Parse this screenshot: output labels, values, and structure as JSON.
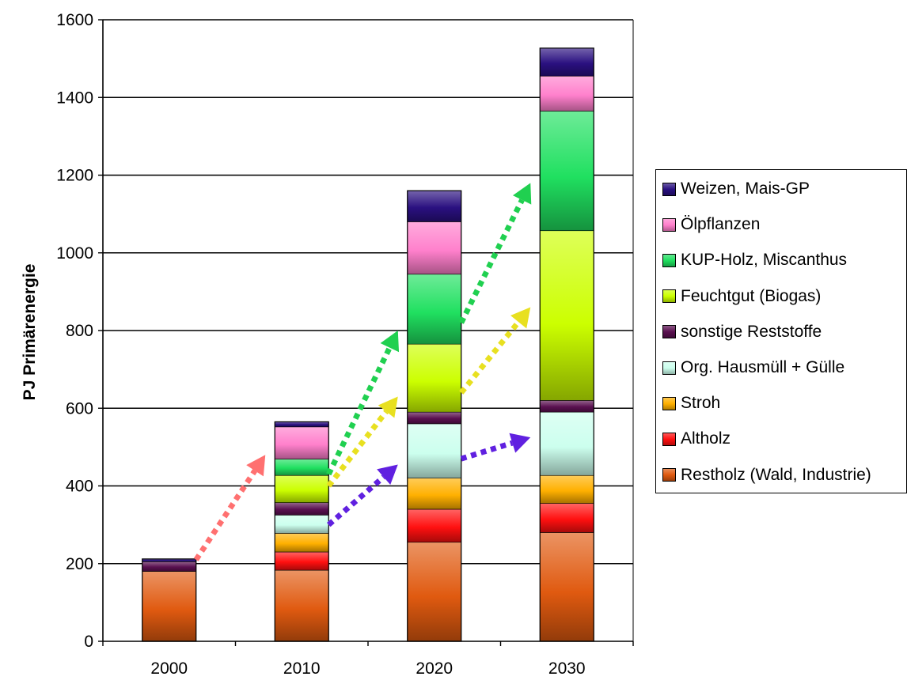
{
  "chart_data": {
    "type": "bar",
    "stacked": true,
    "title": "",
    "xlabel": "",
    "ylabel": "PJ Primärenergie",
    "ylim": [
      0,
      1600
    ],
    "yticks": [
      0,
      200,
      400,
      600,
      800,
      1000,
      1200,
      1400,
      1600
    ],
    "grid": true,
    "legend_position": "right",
    "categories": [
      "2000",
      "2010",
      "2020",
      "2030"
    ],
    "series": [
      {
        "name": "Restholz (Wald, Industrie)",
        "color": "#e05a10",
        "values": [
          180,
          183,
          255,
          280
        ]
      },
      {
        "name": "Altholz",
        "color": "#ff1010",
        "values": [
          0,
          47,
          85,
          75
        ]
      },
      {
        "name": "Stroh",
        "color": "#ffb000",
        "values": [
          0,
          48,
          80,
          72
        ]
      },
      {
        "name": "Org. Hausmüll + Gülle",
        "color": "#ccffee",
        "values": [
          0,
          47,
          140,
          163
        ]
      },
      {
        "name": "sonstige Reststoffe",
        "color": "#5a1050",
        "values": [
          25,
          32,
          30,
          30
        ]
      },
      {
        "name": "Feuchtgut (Biogas)",
        "color": "#ccff00",
        "values": [
          0,
          70,
          175,
          437
        ]
      },
      {
        "name": "KUP-Holz, Miscanthus",
        "color": "#20e060",
        "values": [
          0,
          42,
          180,
          308
        ]
      },
      {
        "name": "Ölpflanzen",
        "color": "#ff80cc",
        "values": [
          0,
          83,
          135,
          90
        ]
      },
      {
        "name": "Weizen, Mais-GP",
        "color": "#2a1080",
        "values": [
          7,
          13,
          80,
          72
        ]
      }
    ],
    "arrows": [
      {
        "color": "#ff7070",
        "from": {
          "x": "2000",
          "y": 210
        },
        "to": {
          "x": "2010",
          "y": 480
        }
      },
      {
        "color": "#6020e0",
        "from": {
          "x": "2010",
          "y": 300
        },
        "to": {
          "x": "2020",
          "y": 455
        }
      },
      {
        "color": "#6020e0",
        "from": {
          "x": "2020",
          "y": 470
        },
        "to": {
          "x": "2030",
          "y": 525
        }
      },
      {
        "color": "#e8e020",
        "from": {
          "x": "2010",
          "y": 400
        },
        "to": {
          "x": "2020",
          "y": 630
        }
      },
      {
        "color": "#e8e020",
        "from": {
          "x": "2020",
          "y": 640
        },
        "to": {
          "x": "2030",
          "y": 860
        }
      },
      {
        "color": "#20d050",
        "from": {
          "x": "2010",
          "y": 430
        },
        "to": {
          "x": "2020",
          "y": 800
        }
      },
      {
        "color": "#20d050",
        "from": {
          "x": "2020",
          "y": 820
        },
        "to": {
          "x": "2030",
          "y": 1180
        }
      }
    ]
  }
}
